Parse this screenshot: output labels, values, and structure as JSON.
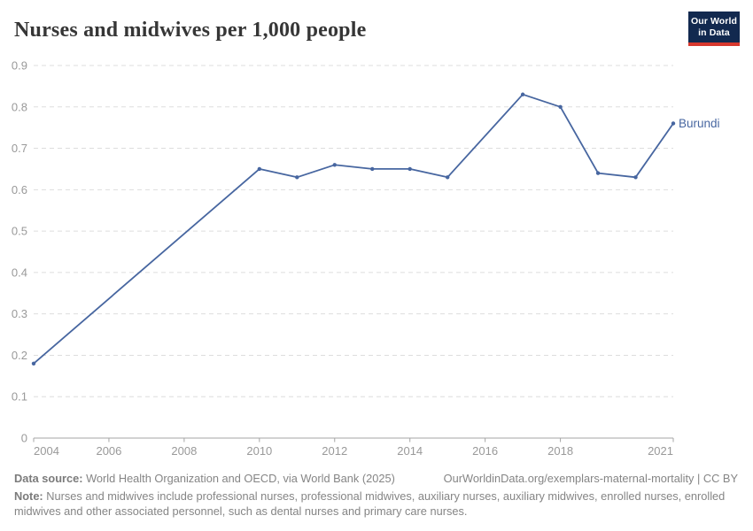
{
  "header": {
    "title": "Nurses and midwives per 1,000 people",
    "logo": {
      "line1": "Our World",
      "line2": "in Data"
    }
  },
  "chart_data": {
    "type": "line",
    "title": "Nurses and midwives per 1,000 people",
    "x": [
      2004,
      2010,
      2011,
      2012,
      2013,
      2014,
      2015,
      2017,
      2018,
      2019,
      2020,
      2021
    ],
    "series": [
      {
        "name": "Burundi",
        "color": "#4766A0",
        "values": [
          0.18,
          0.65,
          0.63,
          0.66,
          0.65,
          0.65,
          0.63,
          0.83,
          0.8,
          0.64,
          0.63,
          0.76
        ]
      }
    ],
    "xlim": [
      2004,
      2021
    ],
    "ylim": [
      0,
      0.9
    ],
    "x_tick_labels": [
      "2004",
      "2006",
      "2008",
      "2010",
      "2012",
      "2014",
      "2016",
      "2018",
      "2021"
    ],
    "y_tick_labels": [
      "0",
      "0.1",
      "0.2",
      "0.3",
      "0.4",
      "0.5",
      "0.6",
      "0.7",
      "0.8",
      "0.9"
    ],
    "grid": "horizontal-dashed",
    "legend_position": "end-of-line-label",
    "xlabel": "",
    "ylabel": ""
  },
  "footer": {
    "data_source_label": "Data source:",
    "data_source_text": " World Health Organization and OECD, via World Bank (2025)",
    "link_text": "OurWorldinData.org/exemplars-maternal-mortality | CC BY",
    "note_label": "Note:",
    "note_text": " Nurses and midwives include professional nurses, professional midwives, auxiliary nurses, auxiliary midwives, enrolled nurses, enrolled midwives and other associated personnel, such as dental nurses and primary care nurses."
  },
  "colors": {
    "line": "#4766A0",
    "grid": "#DDDDDD",
    "axis": "#A5A5A5",
    "tick_text": "#999999",
    "title_text": "#363636",
    "footer_text": "#858585",
    "logo_bg": "#12294F",
    "logo_stripe": "#D7382E"
  }
}
